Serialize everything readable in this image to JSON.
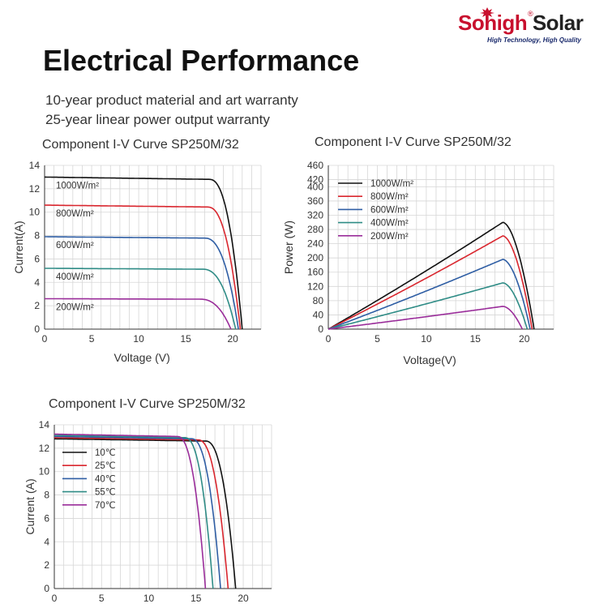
{
  "header": {
    "brand": [
      "Sohigh",
      "Solar"
    ],
    "registered": "®",
    "tagline": "High Technology, High Quality",
    "title": "Electrical Performance",
    "warranty": [
      "10-year product material and art warranty",
      "25-year linear power output warranty"
    ]
  },
  "colors": {
    "black": "#111111",
    "red": "#d9262e",
    "blue": "#2f5ea4",
    "teal": "#2f8c86",
    "purple": "#9a2d9a",
    "grid": "#d6d6d6"
  },
  "chart_data": [
    {
      "type": "line",
      "title": "Component I-V Curve SP250M/32",
      "xlabel": "Voltage (V)",
      "ylabel": "Current(A)",
      "xlim": [
        0,
        23
      ],
      "ylim": [
        0,
        14
      ],
      "xticks": [
        0,
        5,
        10,
        15,
        20
      ],
      "yticks": [
        0,
        2,
        4,
        6,
        8,
        10,
        12,
        14
      ],
      "grid": true,
      "legend_placement": "on-curve labels",
      "series": [
        {
          "name": "1000W/m²",
          "color": "#111111",
          "isc": 13.0,
          "voc": 21.0,
          "knee": 17.5
        },
        {
          "name": "800W/m²",
          "color": "#d9262e",
          "isc": 10.6,
          "voc": 20.8,
          "knee": 17.3
        },
        {
          "name": "600W/m²",
          "color": "#2f5ea4",
          "isc": 7.9,
          "voc": 20.6,
          "knee": 17.0
        },
        {
          "name": "400W/m²",
          "color": "#2f8c86",
          "isc": 5.2,
          "voc": 20.3,
          "knee": 16.8
        },
        {
          "name": "200W/m²",
          "color": "#9a2d9a",
          "isc": 2.6,
          "voc": 19.8,
          "knee": 16.5
        }
      ]
    },
    {
      "type": "line",
      "title": "Component I-V Curve SP250M/32",
      "xlabel": "Voltage(V)",
      "ylabel": "Power (W)",
      "xlim": [
        0,
        23
      ],
      "ylim": [
        0,
        460
      ],
      "xticks": [
        0,
        5,
        10,
        15,
        20
      ],
      "yticks": [
        0,
        40,
        80,
        120,
        160,
        200,
        240,
        280,
        320,
        360,
        400,
        420,
        460
      ],
      "grid": true,
      "legend_placement": "top-left",
      "series": [
        {
          "name": "1000W/m²",
          "color": "#111111",
          "pmax": 300,
          "vmp": 17.8,
          "voc": 21.0
        },
        {
          "name": "800W/m²",
          "color": "#d9262e",
          "pmax": 262,
          "vmp": 17.8,
          "voc": 20.8
        },
        {
          "name": "600W/m²",
          "color": "#2f5ea4",
          "pmax": 196,
          "vmp": 17.8,
          "voc": 20.6
        },
        {
          "name": "400W/m²",
          "color": "#2f8c86",
          "pmax": 130,
          "vmp": 17.8,
          "voc": 20.3
        },
        {
          "name": "200W/m²",
          "color": "#9a2d9a",
          "pmax": 64,
          "vmp": 17.8,
          "voc": 19.8
        }
      ]
    },
    {
      "type": "line",
      "title": "Component I-V Curve SP250M/32",
      "xlabel": "Voltage (V)",
      "ylabel": "Current (A)",
      "xlim": [
        0,
        23
      ],
      "ylim": [
        0,
        14
      ],
      "xticks": [
        0,
        5,
        10,
        15,
        20
      ],
      "yticks": [
        0,
        2,
        4,
        6,
        8,
        10,
        12,
        14
      ],
      "grid": true,
      "legend_placement": "top-left",
      "series": [
        {
          "name": "10℃",
          "color": "#111111",
          "isc": 12.8,
          "voc": 19.2,
          "knee": 16.0
        },
        {
          "name": "25℃",
          "color": "#d9262e",
          "isc": 12.9,
          "voc": 18.4,
          "knee": 15.2
        },
        {
          "name": "40℃",
          "color": "#2f5ea4",
          "isc": 13.0,
          "voc": 17.6,
          "knee": 14.5
        },
        {
          "name": "55℃",
          "color": "#2f8c86",
          "isc": 13.1,
          "voc": 16.8,
          "knee": 13.8
        },
        {
          "name": "70℃",
          "color": "#9a2d9a",
          "isc": 13.2,
          "voc": 16.0,
          "knee": 13.0
        }
      ]
    }
  ]
}
